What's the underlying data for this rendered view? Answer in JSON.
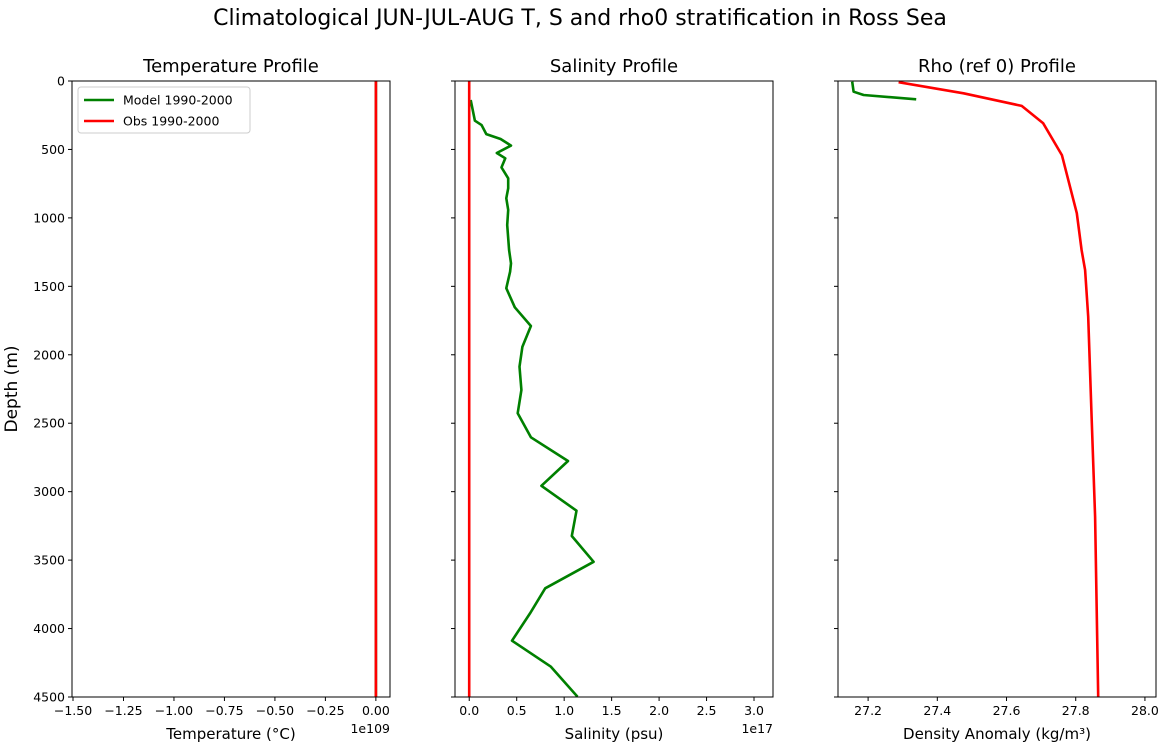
{
  "chart_data": {
    "title": "Climatological JUN-JUL-AUG T, S and rho0 stratification in Ross Sea",
    "ylabel": "Depth (m)",
    "ylim": [
      0,
      4500
    ],
    "y_inverted": true,
    "yticks": [
      0,
      500,
      1000,
      1500,
      2000,
      2500,
      3000,
      3500,
      4000,
      4500
    ],
    "legend": {
      "placement": "upper-left",
      "panel": 0,
      "entries": [
        "Model 1990-2000",
        "Obs 1990-2000"
      ]
    },
    "colors": {
      "Model 1990-2000": "#008000",
      "Obs 1990-2000": "#ff0000"
    },
    "grid": false,
    "panels": [
      {
        "type": "line",
        "title": "Temperature Profile",
        "xlabel": "Temperature (°C)",
        "offset_text": "1e109",
        "xlim": [
          -1.505,
          0.07
        ],
        "xticks": [
          -1.5,
          -1.25,
          -1.0,
          -0.75,
          -0.5,
          -0.25,
          0.0
        ],
        "xtick_labels": [
          "−1.50",
          "−1.25",
          "−1.00",
          "−0.75",
          "−0.50",
          "−0.25",
          "0.00"
        ],
        "series": [
          {
            "name": "Model 1990-2000",
            "x": [
              0,
              0
            ],
            "depth": [
              0,
              4500
            ]
          },
          {
            "name": "Obs 1990-2000",
            "x": [
              0,
              0
            ],
            "depth": [
              0,
              4500
            ]
          }
        ]
      },
      {
        "type": "line",
        "title": "Salinity Profile",
        "xlabel": "Salinity (psu)",
        "offset_text": "1e17",
        "xlim": [
          -0.15,
          3.2
        ],
        "xticks": [
          0.0,
          0.5,
          1.0,
          1.5,
          2.0,
          2.5,
          3.0
        ],
        "xtick_labels": [
          "0.0",
          "0.5",
          "1.0",
          "1.5",
          "2.0",
          "2.5",
          "3.0"
        ],
        "series": [
          {
            "name": "Model 1990-2000",
            "x": [
              0.015,
              0.06,
              0.13,
              0.18,
              0.33,
              0.44,
              0.29,
              0.38,
              0.34,
              0.41,
              0.41,
              0.39,
              0.41,
              0.4,
              0.42,
              0.44,
              0.43,
              0.39,
              0.48,
              0.65,
              0.56,
              0.53,
              0.55,
              0.51,
              0.65,
              1.04,
              0.76,
              1.13,
              1.08,
              1.31,
              0.8,
              0.64,
              0.45,
              0.86,
              1.14
            ],
            "depth": [
              139,
              290,
              322,
              388,
              424,
              472,
              526,
              565,
              631,
              711,
              784,
              857,
              942,
              1052,
              1235,
              1332,
              1393,
              1514,
              1653,
              1790,
              1941,
              2087,
              2257,
              2427,
              2603,
              2776,
              2957,
              3139,
              3324,
              3512,
              3706,
              3889,
              4089,
              4279,
              4498
            ]
          },
          {
            "name": "Obs 1990-2000",
            "x": [
              0,
              0
            ],
            "depth": [
              0,
              4500
            ]
          }
        ]
      },
      {
        "type": "line",
        "title": "Rho (ref 0) Profile",
        "xlabel": "Density Anomaly (kg/m³)",
        "offset_text": "",
        "xlim": [
          27.113,
          28.032
        ],
        "xticks": [
          27.2,
          27.4,
          27.6,
          27.8,
          28.0
        ],
        "xtick_labels": [
          "27.2",
          "27.4",
          "27.6",
          "27.8",
          "28.0"
        ],
        "series": [
          {
            "name": "Model 1990-2000",
            "x": [
              27.154,
              27.158,
              27.187,
              27.339
            ],
            "depth": [
              5,
              78,
              102,
              134
            ]
          },
          {
            "name": "Obs 1990-2000",
            "x": [
              27.288,
              27.476,
              27.644,
              27.706,
              27.76,
              27.803,
              27.817,
              27.827,
              27.836,
              27.846,
              27.856,
              27.865
            ],
            "depth": [
              9,
              90,
              182,
              309,
              541,
              966,
              1235,
              1381,
              1722,
              2453,
              3183,
              4498
            ]
          }
        ]
      }
    ]
  }
}
